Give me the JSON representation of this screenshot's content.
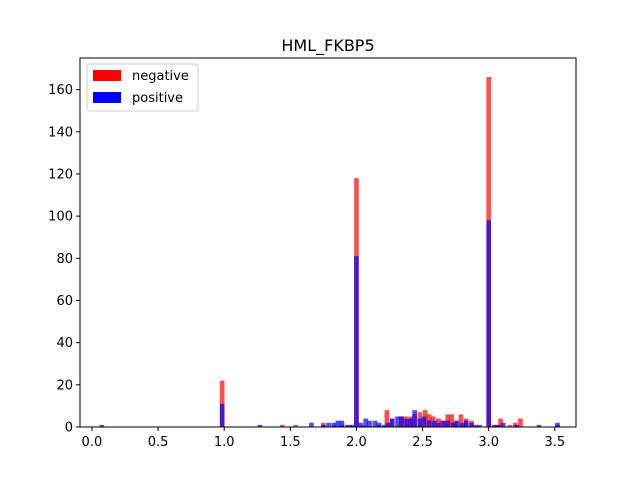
{
  "chart_data": {
    "type": "bar",
    "title": "HML_FKBP5",
    "xlabel": "",
    "ylabel": "",
    "xlim": [
      -0.09,
      3.66
    ],
    "ylim": [
      0,
      175
    ],
    "xticks": [
      0.0,
      0.5,
      1.0,
      1.5,
      2.0,
      2.5,
      3.0,
      3.5
    ],
    "xtick_labels": [
      "0.0",
      "0.5",
      "1.0",
      "1.5",
      "2.0",
      "2.5",
      "3.0",
      "3.5"
    ],
    "yticks": [
      0,
      20,
      40,
      60,
      80,
      100,
      120,
      140,
      160
    ],
    "ytick_labels": [
      "0",
      "20",
      "40",
      "60",
      "80",
      "100",
      "120",
      "140",
      "160"
    ],
    "bin_width": 0.035,
    "legend": {
      "placement": "top-left",
      "entries": [
        "negative",
        "positive"
      ]
    },
    "series": [
      {
        "name": "negative",
        "color": "#ff0000",
        "alpha": 0.7,
        "x": [
          0.985,
          1.44,
          1.54,
          1.75,
          1.83,
          1.89,
          1.95,
          2.0,
          2.05,
          2.17,
          2.23,
          2.27,
          2.34,
          2.37,
          2.41,
          2.44,
          2.48,
          2.52,
          2.55,
          2.58,
          2.62,
          2.65,
          2.69,
          2.72,
          2.75,
          2.79,
          2.83,
          2.87,
          3.0,
          3.06,
          3.09,
          3.16,
          3.2,
          3.24,
          3.52
        ],
        "values": [
          22,
          1,
          1,
          2,
          1,
          1,
          1,
          118,
          1,
          1,
          8,
          4,
          5,
          5,
          5,
          6,
          7,
          8,
          6,
          5,
          4,
          3,
          6,
          6,
          3,
          6,
          4,
          3,
          166,
          1,
          4,
          1,
          2,
          4,
          1
        ]
      },
      {
        "name": "positive",
        "color": "#0000ff",
        "alpha": 0.7,
        "x": [
          0.075,
          0.985,
          1.27,
          1.66,
          1.75,
          1.79,
          1.83,
          1.86,
          1.89,
          1.93,
          1.97,
          2.0,
          2.03,
          2.07,
          2.1,
          2.14,
          2.17,
          2.21,
          2.24,
          2.27,
          2.31,
          2.34,
          2.38,
          2.41,
          2.44,
          2.48,
          2.51,
          2.55,
          2.59,
          2.62,
          2.66,
          2.69,
          2.73,
          2.76,
          2.8,
          2.83,
          2.87,
          2.9,
          2.93,
          3.0,
          3.04,
          3.07,
          3.11,
          3.21,
          3.38,
          3.52
        ],
        "values": [
          1,
          11,
          1,
          2,
          1,
          2,
          2,
          3,
          3,
          1,
          1,
          81,
          2,
          4,
          3,
          3,
          2,
          1,
          2,
          4,
          5,
          5,
          4,
          4,
          8,
          4,
          5,
          3,
          3,
          2,
          3,
          3,
          2,
          3,
          2,
          3,
          2,
          1,
          1,
          98,
          1,
          1,
          2,
          1,
          1,
          2
        ]
      }
    ]
  }
}
